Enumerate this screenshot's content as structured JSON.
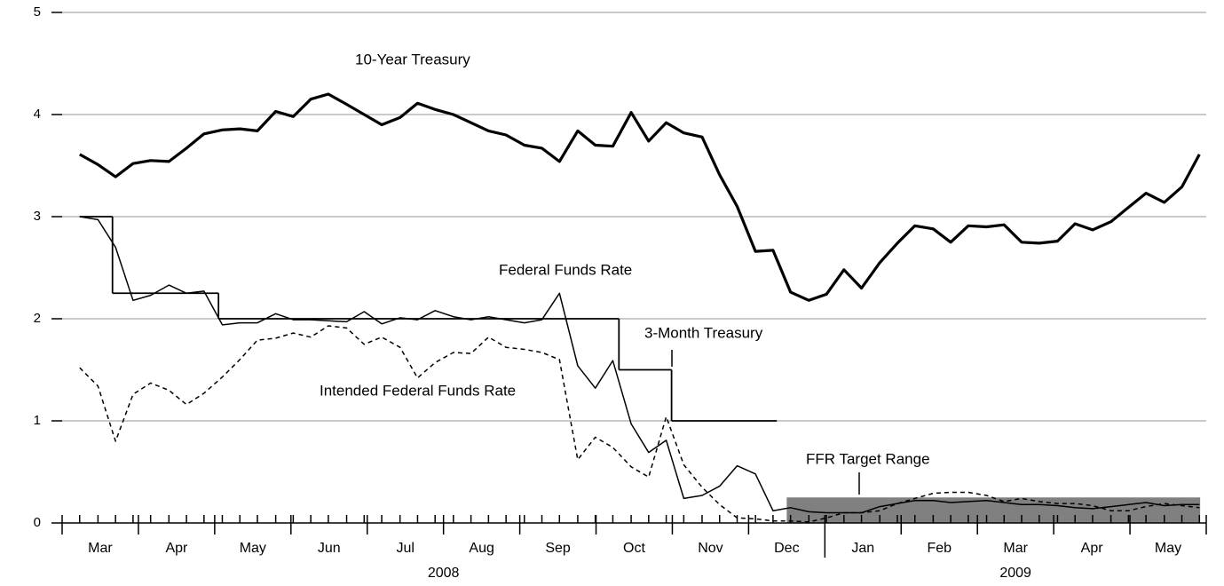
{
  "chart_data": {
    "type": "line",
    "categories": [
      "Mar",
      "Apr",
      "May",
      "Jun",
      "Jul",
      "Aug",
      "Sep",
      "Oct",
      "Nov",
      "Dec",
      "Jan",
      "Feb",
      "Mar",
      "Apr",
      "May"
    ],
    "years": [
      "2008",
      "2009"
    ],
    "xlim": [
      0,
      15
    ],
    "ylim": [
      0,
      5
    ],
    "yticks": [
      0,
      1,
      2,
      3,
      4,
      5
    ],
    "grid": true,
    "series": [
      {
        "name": "10-Year Treasury",
        "color": "#000000",
        "width": 3.2,
        "style": "solid",
        "x": [
          0.23,
          0.47,
          0.7,
          0.93,
          1.16,
          1.4,
          1.63,
          1.86,
          2.1,
          2.33,
          2.56,
          2.8,
          3.03,
          3.26,
          3.49,
          3.73,
          3.96,
          4.19,
          4.43,
          4.66,
          4.89,
          5.13,
          5.36,
          5.59,
          5.82,
          6.06,
          6.29,
          6.52,
          6.76,
          6.99,
          7.22,
          7.46,
          7.69,
          7.92,
          8.15,
          8.39,
          8.62,
          8.85,
          9.09,
          9.32,
          9.55,
          9.79,
          10.02,
          10.25,
          10.48,
          10.72,
          10.95,
          11.18,
          11.42,
          11.65,
          11.88,
          12.12,
          12.35,
          12.58,
          12.81,
          13.05,
          13.28,
          13.51,
          13.75,
          13.98,
          14.21,
          14.45,
          14.68,
          14.91
        ],
        "values": [
          3.61,
          3.51,
          3.39,
          3.52,
          3.55,
          3.54,
          3.67,
          3.81,
          3.85,
          3.86,
          3.84,
          4.03,
          3.98,
          4.15,
          4.2,
          4.1,
          4.0,
          3.9,
          3.97,
          4.11,
          4.05,
          4.0,
          3.92,
          3.84,
          3.8,
          3.7,
          3.67,
          3.54,
          3.84,
          3.7,
          3.69,
          4.02,
          3.74,
          3.92,
          3.82,
          3.78,
          3.41,
          3.1,
          2.66,
          2.67,
          2.26,
          2.18,
          2.24,
          2.48,
          2.3,
          2.55,
          2.74,
          2.91,
          2.88,
          2.75,
          2.91,
          2.9,
          2.92,
          2.75,
          2.74,
          2.76,
          2.93,
          2.87,
          2.95,
          3.09,
          3.23,
          3.14,
          3.29,
          3.61
        ]
      },
      {
        "name": "Federal Funds Rate",
        "color": "#000000",
        "width": 1.5,
        "style": "solid",
        "x": [
          0.23,
          0.47,
          0.7,
          0.93,
          1.16,
          1.4,
          1.63,
          1.86,
          2.1,
          2.33,
          2.56,
          2.8,
          3.03,
          3.26,
          3.49,
          3.73,
          3.96,
          4.19,
          4.43,
          4.66,
          4.89,
          5.13,
          5.36,
          5.59,
          5.82,
          6.06,
          6.29,
          6.52,
          6.76,
          6.99,
          7.22,
          7.46,
          7.69,
          7.92,
          8.15,
          8.39,
          8.62,
          8.85,
          9.09,
          9.32,
          9.55,
          9.79,
          10.02,
          10.25,
          10.48,
          10.72,
          10.95,
          11.18,
          11.42,
          11.65,
          11.88,
          12.12,
          12.35,
          12.58,
          12.81,
          13.05,
          13.28,
          13.51,
          13.75,
          13.98,
          14.21,
          14.45,
          14.68,
          14.91
        ],
        "values": [
          3.0,
          2.97,
          2.7,
          2.18,
          2.23,
          2.33,
          2.25,
          2.27,
          1.94,
          1.96,
          1.96,
          2.05,
          1.99,
          1.99,
          1.98,
          1.97,
          2.07,
          1.95,
          2.01,
          1.99,
          2.08,
          2.02,
          1.99,
          2.02,
          1.99,
          1.96,
          1.99,
          2.25,
          1.54,
          1.32,
          1.59,
          0.97,
          0.69,
          0.81,
          0.24,
          0.27,
          0.36,
          0.56,
          0.48,
          0.12,
          0.15,
          0.11,
          0.1,
          0.1,
          0.1,
          0.16,
          0.19,
          0.22,
          0.22,
          0.2,
          0.21,
          0.22,
          0.2,
          0.18,
          0.18,
          0.17,
          0.15,
          0.14,
          0.16,
          0.18,
          0.2,
          0.17,
          0.18,
          0.18
        ]
      },
      {
        "name": "3-Month Treasury",
        "color": "#000000",
        "width": 1.5,
        "style": "dashed",
        "x": [
          0.23,
          0.47,
          0.7,
          0.93,
          1.16,
          1.4,
          1.63,
          1.86,
          2.1,
          2.33,
          2.56,
          2.8,
          3.03,
          3.26,
          3.49,
          3.73,
          3.96,
          4.19,
          4.43,
          4.66,
          4.89,
          5.13,
          5.36,
          5.59,
          5.82,
          6.06,
          6.29,
          6.52,
          6.76,
          6.99,
          7.22,
          7.46,
          7.69,
          7.92,
          8.15,
          8.39,
          8.62,
          8.85,
          9.09,
          9.32,
          9.55,
          9.79,
          10.02,
          10.25,
          10.48,
          10.72,
          10.95,
          11.18,
          11.42,
          11.65,
          11.88,
          12.12,
          12.35,
          12.58,
          12.81,
          13.05,
          13.28,
          13.51,
          13.75,
          13.98,
          14.21,
          14.45,
          14.68,
          14.91
        ],
        "values": [
          1.52,
          1.34,
          0.8,
          1.26,
          1.37,
          1.3,
          1.16,
          1.27,
          1.43,
          1.6,
          1.79,
          1.81,
          1.86,
          1.82,
          1.93,
          1.91,
          1.75,
          1.82,
          1.72,
          1.42,
          1.57,
          1.67,
          1.66,
          1.82,
          1.72,
          1.7,
          1.67,
          1.6,
          0.62,
          0.84,
          0.74,
          0.55,
          0.45,
          1.04,
          0.57,
          0.35,
          0.18,
          0.05,
          0.04,
          0.02,
          0.02,
          0.01,
          0.05,
          0.1,
          0.1,
          0.12,
          0.19,
          0.24,
          0.29,
          0.3,
          0.3,
          0.27,
          0.21,
          0.24,
          0.21,
          0.19,
          0.19,
          0.17,
          0.12,
          0.12,
          0.16,
          0.19,
          0.17,
          0.15
        ]
      },
      {
        "name": "Intended Federal Funds Rate",
        "color": "#000000",
        "width": 1.8,
        "style": "step",
        "x": [
          0.23,
          0.66,
          2.05,
          7.3,
          7.99,
          9.37
        ],
        "values": [
          3.0,
          2.25,
          2.0,
          1.5,
          1.0,
          1.0
        ]
      }
    ],
    "target_range": {
      "name": "FFR Target Range",
      "color": "#808080",
      "x": [
        9.5,
        14.92
      ],
      "values": [
        0,
        0.25
      ]
    }
  }
}
